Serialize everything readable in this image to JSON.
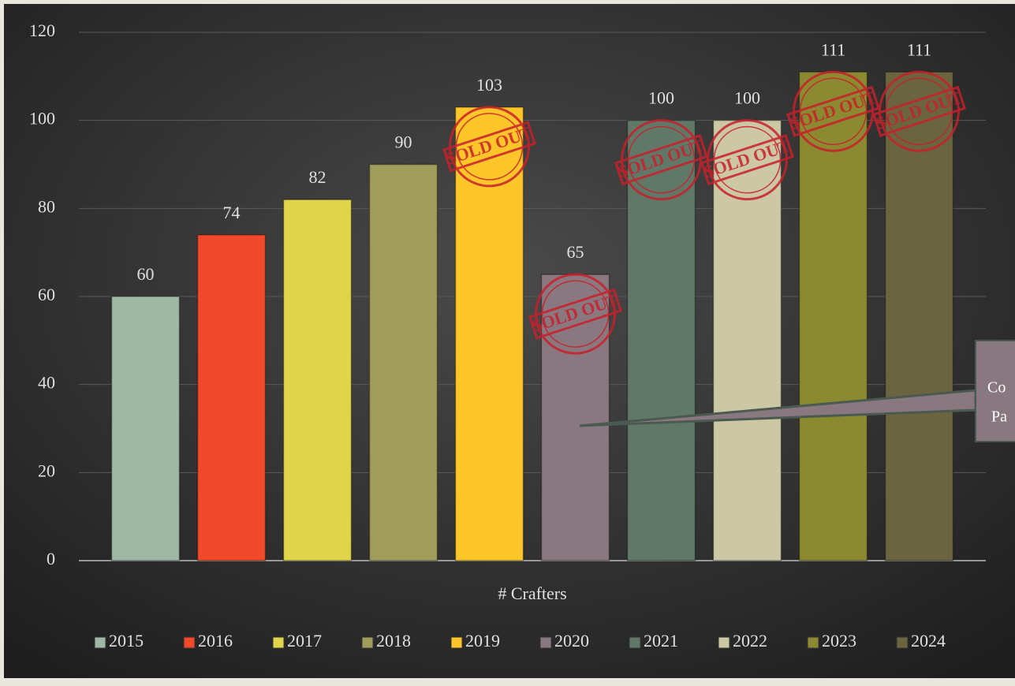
{
  "chart_data": {
    "type": "bar",
    "categories": [
      "# Crafters"
    ],
    "series": [
      {
        "name": "2015",
        "color": "#9fb8a6",
        "values": [
          60
        ]
      },
      {
        "name": "2016",
        "color": "#f04a2a",
        "values": [
          74
        ]
      },
      {
        "name": "2017",
        "color": "#e0d44a",
        "values": [
          82
        ]
      },
      {
        "name": "2018",
        "color": "#a09c5c",
        "values": [
          90
        ]
      },
      {
        "name": "2019",
        "color": "#ffc62a",
        "values": [
          103
        ],
        "sold_out": true
      },
      {
        "name": "2020",
        "color": "#8a7880",
        "values": [
          65
        ],
        "sold_out": true
      },
      {
        "name": "2021",
        "color": "#607868",
        "values": [
          100
        ],
        "sold_out": true
      },
      {
        "name": "2022",
        "color": "#ccc7a4",
        "values": [
          100
        ],
        "sold_out": true
      },
      {
        "name": "2023",
        "color": "#8c8a30",
        "values": [
          111
        ],
        "sold_out": true
      },
      {
        "name": "2024",
        "color": "#6a6440",
        "values": [
          111
        ],
        "sold_out": true
      }
    ],
    "stamp": "SOLD OUT",
    "annotation": [
      "Co",
      "Pa"
    ],
    "ylim": [
      0,
      120
    ],
    "yticks": [
      0,
      20,
      40,
      60,
      80,
      100,
      120
    ],
    "grid": true,
    "legend": "bottom"
  }
}
